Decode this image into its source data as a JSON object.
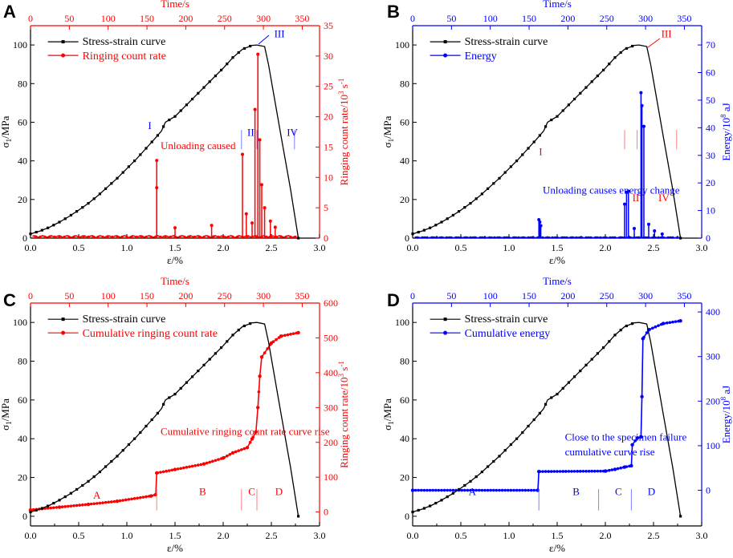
{
  "colors": {
    "black": "#000000",
    "red": "#ff0000",
    "blue": "#0000ff",
    "phaseRed": "#ff7f7f",
    "phaseBlue": "#7f7fff"
  },
  "chart_data": [
    {
      "panel": "A",
      "type": "line",
      "secondary": "red",
      "xlabel": "ε/%",
      "ylabel": "σ1/MPa",
      "top_label": "Time/s",
      "ylabel_right": "Ringing count rate/10^3 s^-1",
      "xlim": [
        0,
        3.0
      ],
      "ylim": [
        0,
        110
      ],
      "xticks": [
        0.0,
        0.5,
        1.0,
        1.5,
        2.0,
        2.5,
        3.0
      ],
      "yticks": [
        0,
        20,
        40,
        60,
        80,
        100
      ],
      "tticks": [
        0,
        50,
        100,
        150,
        200,
        250,
        300,
        350
      ],
      "rlim": [
        0,
        35
      ],
      "rticks": [
        0,
        5,
        10,
        15,
        20,
        25,
        30,
        35
      ],
      "legend": [
        "Stress-strain curve",
        "Ringing count rate"
      ],
      "stress_strain": [
        [
          0,
          2.2
        ],
        [
          0.1,
          3.7
        ],
        [
          0.2,
          5.7
        ],
        [
          0.3,
          8.3
        ],
        [
          0.4,
          11.2
        ],
        [
          0.5,
          14.5
        ],
        [
          0.6,
          18
        ],
        [
          0.7,
          22
        ],
        [
          0.8,
          26.5
        ],
        [
          0.9,
          31
        ],
        [
          1.0,
          36
        ],
        [
          1.1,
          41
        ],
        [
          1.2,
          46.5
        ],
        [
          1.3,
          52
        ],
        [
          1.36,
          55.5
        ],
        [
          1.4,
          60
        ],
        [
          1.5,
          63
        ],
        [
          1.6,
          68
        ],
        [
          1.7,
          73
        ],
        [
          1.8,
          78
        ],
        [
          1.9,
          83
        ],
        [
          2.0,
          88
        ],
        [
          2.1,
          93.5
        ],
        [
          2.2,
          97.8
        ],
        [
          2.3,
          99.8
        ],
        [
          2.35,
          100
        ],
        [
          2.43,
          99.2
        ],
        [
          2.47,
          90
        ],
        [
          2.6,
          53
        ],
        [
          2.7,
          25
        ],
        [
          2.78,
          0
        ]
      ],
      "acoustic_bars": [
        [
          1.31,
          12.8
        ],
        [
          1.31,
          8.3
        ],
        [
          1.5,
          1.7
        ],
        [
          1.88,
          2.1
        ],
        [
          2.2,
          13.8
        ],
        [
          2.24,
          4
        ],
        [
          2.3,
          2.5
        ],
        [
          2.33,
          21.2
        ],
        [
          2.36,
          30.3
        ],
        [
          2.38,
          16.2
        ],
        [
          2.4,
          8.8
        ],
        [
          2.43,
          5
        ],
        [
          2.49,
          2.8
        ],
        [
          2.54,
          1.8
        ]
      ],
      "annotations": [
        {
          "text": "I",
          "x": 1.22,
          "y": 56.5,
          "color": "blue"
        },
        {
          "text": "II",
          "x": 2.25,
          "y": 53,
          "color": "blue"
        },
        {
          "text": "III",
          "x": 2.53,
          "y": 104,
          "color": "blue"
        },
        {
          "text": "IV",
          "x": 2.66,
          "y": 53,
          "color": "blue"
        },
        {
          "text": "Unloading caused",
          "x": 1.35,
          "y": 46,
          "color": "red"
        }
      ],
      "phase_lines": [
        2.19,
        2.35,
        2.74
      ]
    },
    {
      "panel": "B",
      "type": "line",
      "secondary": "blue",
      "xlabel": "ε/%",
      "ylabel": "σ1/MPa",
      "top_label": "Time/s",
      "ylabel_right": "Energy/10^8 aJ",
      "xlim": [
        0,
        3.0
      ],
      "ylim": [
        0,
        110
      ],
      "xticks": [
        0.0,
        0.5,
        1.0,
        1.5,
        2.0,
        2.5,
        3.0
      ],
      "yticks": [
        0,
        20,
        40,
        60,
        80,
        100
      ],
      "tticks": [
        0,
        50,
        100,
        150,
        200,
        250,
        300,
        350
      ],
      "rlim": [
        0,
        77
      ],
      "rticks": [
        0,
        10,
        20,
        30,
        40,
        50,
        60,
        70
      ],
      "legend": [
        "Stress-strain curve",
        "Energy"
      ],
      "acoustic_bars": [
        [
          1.31,
          6.7
        ],
        [
          1.32,
          5.8
        ],
        [
          1.33,
          4.5
        ],
        [
          2.2,
          12.3
        ],
        [
          2.22,
          16.6
        ],
        [
          2.24,
          17
        ],
        [
          2.3,
          3.5
        ],
        [
          2.37,
          52.7
        ],
        [
          2.38,
          48
        ],
        [
          2.4,
          40.5
        ],
        [
          2.45,
          5
        ],
        [
          2.51,
          2.6
        ],
        [
          2.59,
          1.5
        ]
      ],
      "annotations": [
        {
          "text": "I",
          "x": 1.31,
          "y": 43,
          "color": "red"
        },
        {
          "text": "II",
          "x": 2.28,
          "y": 19,
          "color": "red"
        },
        {
          "text": "III",
          "x": 2.58,
          "y": 104,
          "color": "red"
        },
        {
          "text": "IV",
          "x": 2.55,
          "y": 19,
          "color": "red"
        },
        {
          "text": "Unloading causes energy change",
          "x": 1.35,
          "y": 23,
          "color": "blue"
        }
      ],
      "phase_lines": [
        2.2,
        2.33,
        2.74
      ]
    },
    {
      "panel": "C",
      "type": "line",
      "secondary": "red",
      "xlabel": "ε/%",
      "ylabel": "σ1/MPa",
      "top_label": "Time/s",
      "ylabel_right": "Ringing count rate/10^3 s^-1",
      "xlim": [
        0,
        3.0
      ],
      "ylim": [
        -5,
        110
      ],
      "xticks": [
        0.0,
        0.5,
        1.0,
        1.5,
        2.0,
        2.5,
        3.0
      ],
      "yticks": [
        0,
        20,
        40,
        60,
        80,
        100
      ],
      "tticks": [
        0,
        50,
        100,
        150,
        200,
        250,
        300,
        350
      ],
      "rlim": [
        -40,
        600
      ],
      "rticks": [
        0,
        100,
        200,
        300,
        400,
        500,
        600
      ],
      "legend": [
        "Stress-strain curve",
        "Cumulative ringing count rate"
      ],
      "cumulative": [
        [
          0,
          6
        ],
        [
          0.3,
          14
        ],
        [
          0.6,
          22
        ],
        [
          0.9,
          31
        ],
        [
          1.25,
          46
        ],
        [
          1.3,
          50
        ],
        [
          1.31,
          112
        ],
        [
          1.5,
          122
        ],
        [
          1.8,
          138
        ],
        [
          2.0,
          155
        ],
        [
          2.1,
          170
        ],
        [
          2.25,
          185
        ],
        [
          2.3,
          210
        ],
        [
          2.34,
          230
        ],
        [
          2.36,
          300
        ],
        [
          2.38,
          390
        ],
        [
          2.4,
          445
        ],
        [
          2.5,
          485
        ],
        [
          2.6,
          505
        ],
        [
          2.78,
          515
        ]
      ],
      "annotations": [
        {
          "text": "Cumulative  ringing count rate curve rise",
          "x": 1.35,
          "y": 42,
          "color": "red"
        },
        {
          "text": "A",
          "x": 0.65,
          "y": 9,
          "color": "red"
        },
        {
          "text": "B",
          "x": 1.75,
          "y": 11,
          "color": "red"
        },
        {
          "text": "C",
          "x": 2.26,
          "y": 11,
          "color": "red"
        },
        {
          "text": "D",
          "x": 2.54,
          "y": 11,
          "color": "red"
        }
      ],
      "phase_lines": [
        1.31,
        2.19,
        2.35
      ]
    },
    {
      "panel": "D",
      "type": "line",
      "secondary": "blue",
      "xlabel": "ε/%",
      "ylabel": "σ1/MPa",
      "top_label": "Time/s",
      "ylabel_right": "Energy/10^8 aJ",
      "xlim": [
        0,
        3.0
      ],
      "ylim": [
        -5,
        110
      ],
      "xticks": [
        0.0,
        0.5,
        1.0,
        1.5,
        2.0,
        2.5,
        3.0
      ],
      "yticks": [
        0,
        20,
        40,
        60,
        80,
        100
      ],
      "tticks": [
        0,
        50,
        100,
        150,
        200,
        250,
        300,
        350
      ],
      "rlim": [
        -80,
        420
      ],
      "rticks": [
        0,
        100,
        200,
        300,
        400
      ],
      "legend": [
        "Stress-strain curve",
        "Cumulative energy"
      ],
      "cumulative": [
        [
          0,
          0
        ],
        [
          1.3,
          0
        ],
        [
          1.31,
          42
        ],
        [
          2.0,
          43
        ],
        [
          2.1,
          47
        ],
        [
          2.2,
          52
        ],
        [
          2.27,
          55
        ],
        [
          2.28,
          102
        ],
        [
          2.33,
          117
        ],
        [
          2.37,
          120
        ],
        [
          2.38,
          210
        ],
        [
          2.39,
          340
        ],
        [
          2.45,
          360
        ],
        [
          2.6,
          374
        ],
        [
          2.78,
          380
        ]
      ],
      "annotations": [
        {
          "text": "Close to the specimen failure",
          "x": 1.58,
          "y": 39,
          "color": "blue"
        },
        {
          "text": "cumulative curve rise",
          "x": 1.58,
          "y": 31.5,
          "color": "blue"
        },
        {
          "text": "A",
          "x": 0.58,
          "y": 11,
          "color": "blue"
        },
        {
          "text": "B",
          "x": 1.66,
          "y": 11,
          "color": "blue"
        },
        {
          "text": "C",
          "x": 2.1,
          "y": 11,
          "color": "blue"
        },
        {
          "text": "D",
          "x": 2.44,
          "y": 11,
          "color": "blue"
        }
      ],
      "phase_lines": [
        1.31,
        1.93,
        2.27
      ]
    }
  ]
}
